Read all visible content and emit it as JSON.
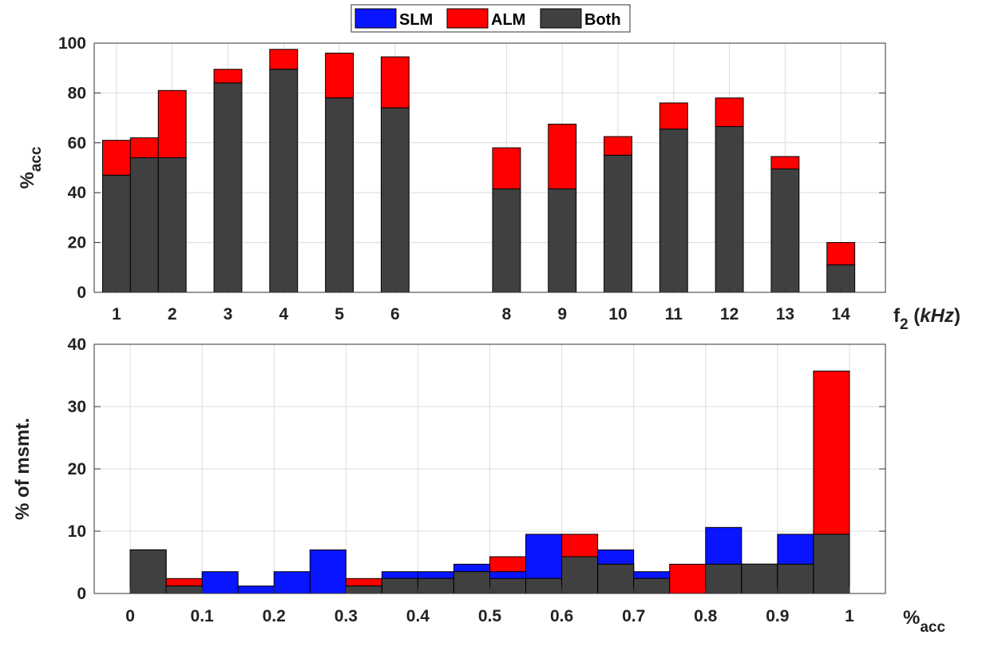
{
  "colors": {
    "slm": "#0a15ff",
    "alm": "#ff0000",
    "both": "#404040"
  },
  "legend": {
    "items": [
      {
        "key": "slm",
        "label": "SLM"
      },
      {
        "key": "alm",
        "label": "ALM"
      },
      {
        "key": "both",
        "label": "Both"
      }
    ]
  },
  "chart_data": [
    {
      "type": "bar",
      "stacked": true,
      "x_tick_labels": [
        "1",
        "2",
        "3",
        "4",
        "5",
        "6",
        "8",
        "9",
        "10",
        "11",
        "12",
        "13",
        "14"
      ],
      "xlim": [
        0.6,
        14.8
      ],
      "xlabel_main": "f",
      "xlabel_sub": "2",
      "xlabel_unit": "kHz",
      "ylabel_main": "%",
      "ylabel_sub": "acc",
      "ylim": [
        0,
        100
      ],
      "y_ticks": [
        0,
        20,
        40,
        60,
        80,
        100
      ],
      "grid": true,
      "bars": [
        {
          "x": 1.0,
          "both": 47,
          "alm": 61
        },
        {
          "x": 1.5,
          "both": 54,
          "alm": 62
        },
        {
          "x": 2.0,
          "both": 54,
          "alm": 81
        },
        {
          "x": 3.0,
          "both": 84,
          "alm": 89.5
        },
        {
          "x": 4.0,
          "both": 89.5,
          "alm": 97.5
        },
        {
          "x": 5.0,
          "both": 78,
          "alm": 96
        },
        {
          "x": 6.0,
          "both": 74,
          "alm": 94.5
        },
        {
          "x": 8.0,
          "both": 41.5,
          "alm": 58
        },
        {
          "x": 9.0,
          "both": 41.5,
          "alm": 67.5
        },
        {
          "x": 10.0,
          "both": 55,
          "alm": 62.5
        },
        {
          "x": 11.0,
          "both": 65.5,
          "alm": 76
        },
        {
          "x": 12.0,
          "both": 66.5,
          "alm": 78
        },
        {
          "x": 13.0,
          "both": 49.5,
          "alm": 54.5
        },
        {
          "x": 14.0,
          "both": 11,
          "alm": 20
        }
      ]
    },
    {
      "type": "bar",
      "stacked": false,
      "overlay": true,
      "xlim": [
        -0.05,
        1.05
      ],
      "x_ticks": [
        0,
        0.1,
        0.2,
        0.3,
        0.4,
        0.5,
        0.6,
        0.7,
        0.8,
        0.9,
        1
      ],
      "x_tick_labels": [
        "0",
        "0.1",
        "0.2",
        "0.3",
        "0.4",
        "0.5",
        "0.6",
        "0.7",
        "0.8",
        "0.9",
        "1"
      ],
      "xlabel_main": "%",
      "xlabel_sub": "acc",
      "ylabel": "% of msmt.",
      "ylim": [
        0,
        40
      ],
      "y_ticks": [
        0,
        10,
        20,
        30,
        40
      ],
      "grid": true,
      "bin_width": 0.05,
      "bins": [
        {
          "x": 0.0,
          "slm": 7.0,
          "alm": 7.0,
          "both": 7.0
        },
        {
          "x": 0.05,
          "slm": 1.2,
          "alm": 2.4,
          "both": 1.2
        },
        {
          "x": 0.1,
          "slm": 3.5,
          "alm": 0,
          "both": 0
        },
        {
          "x": 0.15,
          "slm": 1.2,
          "alm": 0,
          "both": 0
        },
        {
          "x": 0.2,
          "slm": 3.5,
          "alm": 0,
          "both": 0
        },
        {
          "x": 0.25,
          "slm": 7.0,
          "alm": 0,
          "both": 0
        },
        {
          "x": 0.3,
          "slm": 1.2,
          "alm": 2.4,
          "both": 1.2
        },
        {
          "x": 0.35,
          "slm": 3.5,
          "alm": 2.4,
          "both": 2.4
        },
        {
          "x": 0.4,
          "slm": 3.5,
          "alm": 2.4,
          "both": 2.4
        },
        {
          "x": 0.45,
          "slm": 4.7,
          "alm": 3.5,
          "both": 3.5
        },
        {
          "x": 0.5,
          "slm": 3.5,
          "alm": 5.9,
          "both": 2.4
        },
        {
          "x": 0.55,
          "slm": 9.5,
          "alm": 2.4,
          "both": 2.4
        },
        {
          "x": 0.6,
          "slm": 5.9,
          "alm": 9.5,
          "both": 5.9
        },
        {
          "x": 0.65,
          "slm": 7.0,
          "alm": 4.7,
          "both": 4.7
        },
        {
          "x": 0.7,
          "slm": 3.5,
          "alm": 2.4,
          "both": 2.4
        },
        {
          "x": 0.75,
          "slm": 0,
          "alm": 4.7,
          "both": 0
        },
        {
          "x": 0.8,
          "slm": 10.6,
          "alm": 4.7,
          "both": 4.7
        },
        {
          "x": 0.85,
          "slm": 4.7,
          "alm": 4.7,
          "both": 4.7
        },
        {
          "x": 0.9,
          "slm": 9.5,
          "alm": 4.7,
          "both": 4.7
        },
        {
          "x": 0.95,
          "slm": 9.5,
          "alm": 35.7,
          "both": 9.5
        }
      ]
    }
  ]
}
